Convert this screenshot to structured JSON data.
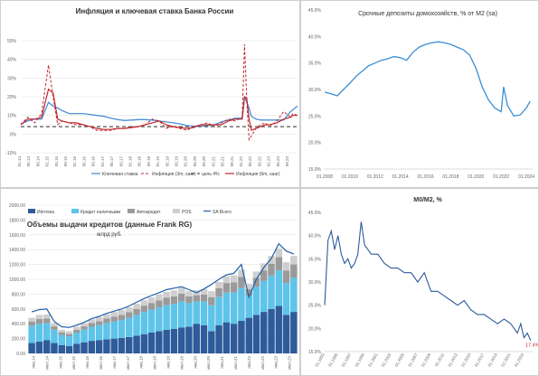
{
  "colors": {
    "blue": "#4a90d9",
    "blue_dark": "#1f5fa8",
    "red_dash": "#c0282d",
    "red": "#c0282d",
    "gray_dash": "#555555",
    "series_blue": "#3a8fd4",
    "light_blue": "#5ec4ea",
    "gray": "#9a9a9a",
    "navy": "#2e5b9a"
  },
  "chart_data": [
    {
      "type": "line",
      "title": "Инфляция и ключевая ставка Банка России",
      "y_ticks": [
        "50%",
        "40%",
        "30%",
        "20%",
        "10%",
        "0%",
        "-10%"
      ],
      "ylim": [
        -10,
        50
      ],
      "x_ticks": [
        "01.14",
        "05.14",
        "09.14",
        "01.15",
        "05.15",
        "09.15",
        "01.16",
        "05.16",
        "09.16",
        "01.17",
        "05.17",
        "09.17",
        "01.18",
        "05.18",
        "09.18",
        "01.19",
        "05.19",
        "09.19",
        "01.20",
        "05.20",
        "09.20",
        "01.21",
        "05.21",
        "09.21",
        "01.22",
        "05.22",
        "09.22",
        "01.23",
        "05.23",
        "09.23"
      ],
      "legend": [
        "Ключевая ставка",
        "Инфляция (3m, saar)",
        "цель 4%",
        "Инфляция (6m, saar)"
      ],
      "legend_position": "bottom",
      "x": [
        0,
        3,
        6,
        9,
        12,
        14,
        16,
        18,
        21,
        24,
        27,
        30,
        33,
        36,
        39,
        42,
        45,
        48,
        51,
        54,
        57,
        60,
        63,
        66,
        69,
        72,
        75,
        78,
        81,
        84,
        87,
        90,
        93,
        96,
        97,
        98,
        99,
        100,
        102,
        104,
        106,
        108,
        111,
        114,
        117,
        118,
        120
      ],
      "series": [
        {
          "name": "Ключевая ставка",
          "values": [
            5.5,
            7,
            8,
            8,
            17,
            15,
            14,
            12.5,
            11,
            11,
            11,
            10.5,
            10,
            9.5,
            8.5,
            7.75,
            7.25,
            7.5,
            7.75,
            7.75,
            7.5,
            7,
            6.5,
            6,
            5.5,
            4.5,
            4.25,
            4.25,
            4.5,
            5,
            6.5,
            7.5,
            8.5,
            8.5,
            20,
            17,
            14,
            9.5,
            8,
            7.5,
            7.5,
            7.5,
            7.5,
            7.5,
            12,
            13,
            15
          ]
        },
        {
          "name": "Инфляция (3m, saar)",
          "values": [
            5,
            9,
            6,
            11,
            37,
            20,
            5,
            7,
            6,
            5,
            5,
            4,
            2,
            2,
            2,
            3,
            3,
            4,
            4,
            5,
            8,
            7,
            3,
            4,
            3,
            2,
            4,
            5,
            6,
            4,
            6,
            8,
            7,
            9,
            48,
            18,
            -3,
            -1,
            3,
            5,
            6,
            4,
            7,
            12,
            9,
            11,
            10
          ]
        },
        {
          "name": "цель 4%",
          "values": [
            4,
            4,
            4,
            4,
            4,
            4,
            4,
            4,
            4,
            4,
            4,
            4,
            4,
            4,
            4,
            4,
            4,
            4,
            4,
            4,
            4,
            4,
            4,
            4,
            4,
            4,
            4,
            4,
            4,
            4,
            4,
            4,
            4,
            4,
            4,
            4,
            4,
            4,
            4,
            4,
            4,
            4,
            4,
            4,
            4,
            4,
            4
          ]
        },
        {
          "name": "Инфляция (6m, saar)",
          "values": [
            5,
            8,
            8,
            9,
            24,
            22,
            8,
            7,
            6,
            6,
            5,
            4,
            3,
            2.5,
            2.5,
            3,
            3,
            3.5,
            4,
            5,
            6,
            7,
            5,
            4,
            3.5,
            3,
            3.5,
            5,
            5,
            5,
            5,
            7,
            8,
            8,
            20,
            19,
            8,
            2,
            3,
            4,
            5,
            5,
            6,
            8,
            9,
            10,
            10
          ]
        }
      ]
    },
    {
      "type": "line",
      "title": "Срочные депозиты домохозяйств, % от M2 (sa)",
      "y_ticks": [
        "45.0%",
        "40.0%",
        "35.0%",
        "30.0%",
        "25.0%",
        "20.0%",
        "15.0%"
      ],
      "ylim": [
        15,
        45
      ],
      "x_ticks": [
        "01.2008",
        "01.2010",
        "01.2012",
        "01.2014",
        "01.2016",
        "01.2018",
        "01.2020",
        "01.2022",
        "01.2024"
      ],
      "x": [
        2008,
        2008.5,
        2009,
        2009.5,
        2010,
        2010.5,
        2011,
        2011.5,
        2012,
        2012.5,
        2013,
        2013.5,
        2014,
        2014.5,
        2015,
        2015.5,
        2016,
        2016.5,
        2017,
        2017.5,
        2018,
        2018.5,
        2019,
        2019.5,
        2020,
        2020.5,
        2021,
        2021.5,
        2022,
        2022.2,
        2022.5,
        2023,
        2023.5,
        2024,
        2024.3
      ],
      "series": [
        {
          "name": "",
          "values": [
            29.5,
            29.2,
            28.8,
            30.0,
            31.2,
            32.5,
            33.5,
            34.5,
            35.0,
            35.5,
            35.8,
            36.2,
            36.0,
            35.5,
            37.0,
            38.0,
            38.5,
            38.8,
            39.0,
            38.8,
            38.5,
            38.0,
            37.5,
            36.5,
            34.0,
            30.5,
            28.0,
            26.5,
            25.8,
            30.5,
            27.0,
            25.0,
            25.2,
            26.5,
            27.8
          ]
        }
      ]
    },
    {
      "type": "bar",
      "title": "Объемы выдачи кредитов (данные Frank RG)",
      "subtitle": "млрд руб.",
      "y_ticks": [
        "2000.00",
        "1800.00",
        "1600.00",
        "1400.00",
        "1200.00",
        "1000.00",
        "800.00",
        "600.00",
        "400.00",
        "200.00",
        "0.00"
      ],
      "ylim": [
        0,
        2000
      ],
      "x_ticks": [
        "янв.14",
        "июл.14",
        "янв.15",
        "июл.15",
        "янв.16",
        "июл.16",
        "янв.17",
        "июл.17",
        "янв.18",
        "июл.18",
        "янв.19",
        "июл.19",
        "янв.20",
        "июл.20",
        "янв.21",
        "июл.21",
        "янв.22",
        "июл.22",
        "янв.23",
        "июл.23"
      ],
      "legend": [
        "Ипотека",
        "Кредит наличными",
        "Автокредит",
        "POS",
        "SA Всего"
      ],
      "legend_position": "top",
      "months": 120,
      "series": [
        {
          "name": "Ипотека",
          "values": [
            140,
            160,
            180,
            140,
            110,
            100,
            130,
            150,
            170,
            180,
            190,
            200,
            210,
            220,
            240,
            260,
            280,
            300,
            320,
            330,
            350,
            360,
            400,
            380,
            300,
            380,
            420,
            400,
            440,
            480,
            520,
            560,
            600,
            640,
            520,
            560
          ]
        },
        {
          "name": "Кредит наличными",
          "values": [
            230,
            240,
            230,
            180,
            140,
            130,
            150,
            170,
            190,
            200,
            220,
            230,
            240,
            260,
            280,
            300,
            310,
            320,
            330,
            340,
            350,
            320,
            300,
            320,
            350,
            380,
            400,
            420,
            440,
            300,
            380,
            420,
            450,
            480,
            430,
            460
          ]
        },
        {
          "name": "Автокредит",
          "values": [
            60,
            65,
            60,
            45,
            35,
            35,
            40,
            45,
            50,
            55,
            60,
            65,
            70,
            75,
            80,
            85,
            90,
            95,
            100,
            100,
            105,
            90,
            85,
            95,
            110,
            120,
            130,
            140,
            150,
            90,
            120,
            140,
            160,
            180,
            170,
            180
          ]
        },
        {
          "name": "POS",
          "values": [
            50,
            55,
            55,
            45,
            35,
            35,
            40,
            45,
            50,
            55,
            60,
            62,
            65,
            68,
            70,
            72,
            75,
            78,
            80,
            80,
            82,
            70,
            65,
            72,
            80,
            85,
            90,
            95,
            100,
            70,
            85,
            95,
            105,
            115,
            110,
            115
          ]
        },
        {
          "name": "SA Всего",
          "values": [
            560,
            590,
            600,
            430,
            360,
            350,
            380,
            420,
            470,
            500,
            540,
            570,
            600,
            640,
            690,
            740,
            780,
            820,
            860,
            880,
            900,
            860,
            820,
            870,
            930,
            1000,
            1060,
            1080,
            1200,
            760,
            1000,
            1160,
            1280,
            1480,
            1380,
            1340
          ]
        }
      ]
    },
    {
      "type": "line",
      "title": "M0/M2, %",
      "y_ticks": [
        "45.0%",
        "40.0%",
        "35.0%",
        "30.0%",
        "25.0%",
        "20.0%",
        "15.0%"
      ],
      "ylim": [
        15,
        45
      ],
      "x_ticks": [
        "01.1993",
        "01.1995",
        "01.1997",
        "01.1999",
        "01.2001",
        "01.2003",
        "01.2005",
        "01.2007",
        "01.2009",
        "01.2011",
        "01.2013",
        "01.2015",
        "01.2017",
        "01.2019",
        "01.2021",
        "01.2023"
      ],
      "end_label": "17.4%",
      "x": [
        1993,
        1993.5,
        1994,
        1994.5,
        1995,
        1995.5,
        1996,
        1996.5,
        1997,
        1997.5,
        1998,
        1998.5,
        1999,
        1999.5,
        2000,
        2001,
        2002,
        2003,
        2004,
        2005,
        2006,
        2007,
        2008,
        2009,
        2010,
        2011,
        2012,
        2013,
        2014,
        2015,
        2016,
        2017,
        2018,
        2019,
        2020,
        2021,
        2022,
        2022.5,
        2023,
        2023.5,
        2024
      ],
      "series": [
        {
          "name": "",
          "values": [
            25,
            39,
            41,
            37,
            40,
            36,
            34,
            35,
            33,
            34,
            36,
            43,
            38,
            37,
            36,
            36,
            34,
            33,
            33,
            32,
            32,
            30,
            32,
            28,
            28,
            27,
            26,
            25,
            26,
            24,
            23,
            23,
            22,
            21,
            22,
            21,
            19,
            21,
            18,
            19,
            17.4
          ]
        }
      ]
    }
  ]
}
